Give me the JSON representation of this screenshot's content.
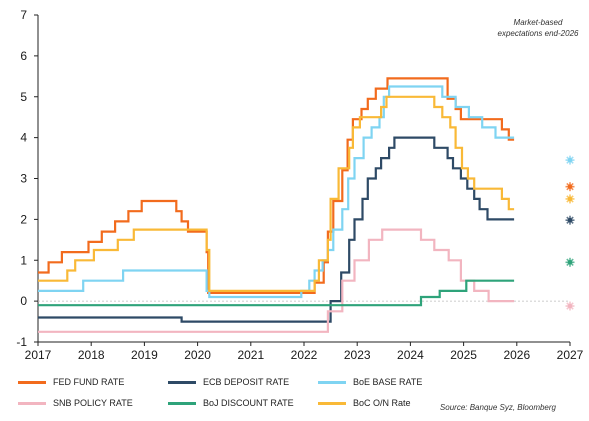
{
  "chart_data": {
    "type": "line",
    "title": "",
    "xlabel": "",
    "ylabel": "",
    "xlim": [
      2017,
      2027
    ],
    "ylim": [
      -1,
      7
    ],
    "x_ticks": [
      "2017",
      "2018",
      "2019",
      "2020",
      "2021",
      "2022",
      "2023",
      "2024",
      "2025",
      "2026",
      "2027"
    ],
    "y_ticks": [
      "-1",
      "0",
      "1",
      "2",
      "3",
      "4",
      "5",
      "6",
      "7"
    ],
    "grid": false,
    "annotation": "Market-based expectations end-2026",
    "source": "Source: Banque Syz, Bloomberg",
    "legend_position": "bottom",
    "series": [
      {
        "name": "FED FUND RATE",
        "color": "#f26b1d",
        "end_expectation": 2.8,
        "points": [
          [
            2017.0,
            0.7
          ],
          [
            2017.2,
            0.95
          ],
          [
            2017.45,
            1.2
          ],
          [
            2017.95,
            1.45
          ],
          [
            2018.2,
            1.7
          ],
          [
            2018.45,
            1.95
          ],
          [
            2018.7,
            2.2
          ],
          [
            2018.95,
            2.45
          ],
          [
            2019.6,
            2.2
          ],
          [
            2019.7,
            1.95
          ],
          [
            2019.82,
            1.7
          ],
          [
            2020.17,
            1.2
          ],
          [
            2020.2,
            0.2
          ],
          [
            2022.2,
            0.45
          ],
          [
            2022.37,
            0.95
          ],
          [
            2022.45,
            1.7
          ],
          [
            2022.55,
            2.45
          ],
          [
            2022.72,
            3.2
          ],
          [
            2022.82,
            3.95
          ],
          [
            2022.92,
            4.45
          ],
          [
            2023.08,
            4.7
          ],
          [
            2023.2,
            4.95
          ],
          [
            2023.35,
            5.2
          ],
          [
            2023.57,
            5.45
          ],
          [
            2024.7,
            4.95
          ],
          [
            2024.85,
            4.7
          ],
          [
            2024.95,
            4.45
          ],
          [
            2025.05,
            4.45
          ],
          [
            2025.72,
            4.2
          ],
          [
            2025.85,
            3.95
          ],
          [
            2025.95,
            3.95
          ]
        ]
      },
      {
        "name": "ECB DEPOSIT RATE",
        "color": "#2e4a66",
        "end_expectation": 1.98,
        "points": [
          [
            2017.0,
            -0.4
          ],
          [
            2019.7,
            -0.5
          ],
          [
            2022.5,
            0.0
          ],
          [
            2022.7,
            0.7
          ],
          [
            2022.85,
            1.5
          ],
          [
            2022.95,
            2.0
          ],
          [
            2023.1,
            2.5
          ],
          [
            2023.2,
            3.0
          ],
          [
            2023.35,
            3.25
          ],
          [
            2023.45,
            3.5
          ],
          [
            2023.6,
            3.75
          ],
          [
            2023.7,
            4.0
          ],
          [
            2024.45,
            3.75
          ],
          [
            2024.7,
            3.5
          ],
          [
            2024.8,
            3.25
          ],
          [
            2024.95,
            3.0
          ],
          [
            2025.07,
            2.75
          ],
          [
            2025.2,
            2.5
          ],
          [
            2025.3,
            2.25
          ],
          [
            2025.45,
            2.0
          ],
          [
            2025.95,
            2.0
          ]
        ]
      },
      {
        "name": "BoE BASE RATE",
        "color": "#7fd4f2",
        "end_expectation": 3.45,
        "points": [
          [
            2017.0,
            0.25
          ],
          [
            2017.85,
            0.5
          ],
          [
            2018.6,
            0.75
          ],
          [
            2020.17,
            0.25
          ],
          [
            2020.22,
            0.1
          ],
          [
            2021.95,
            0.25
          ],
          [
            2022.1,
            0.5
          ],
          [
            2022.2,
            0.75
          ],
          [
            2022.35,
            1.0
          ],
          [
            2022.45,
            1.25
          ],
          [
            2022.55,
            1.75
          ],
          [
            2022.72,
            2.25
          ],
          [
            2022.83,
            3.0
          ],
          [
            2022.95,
            3.5
          ],
          [
            2023.12,
            4.0
          ],
          [
            2023.27,
            4.25
          ],
          [
            2023.42,
            4.5
          ],
          [
            2023.5,
            5.0
          ],
          [
            2023.6,
            5.25
          ],
          [
            2024.6,
            5.0
          ],
          [
            2024.85,
            4.75
          ],
          [
            2025.1,
            4.5
          ],
          [
            2025.35,
            4.25
          ],
          [
            2025.6,
            4.0
          ],
          [
            2025.95,
            4.0
          ]
        ]
      },
      {
        "name": "SNB POLICY RATE",
        "color": "#f2b5c0",
        "end_expectation": -0.12,
        "points": [
          [
            2017.0,
            -0.75
          ],
          [
            2022.45,
            -0.25
          ],
          [
            2022.72,
            0.5
          ],
          [
            2022.95,
            1.0
          ],
          [
            2023.22,
            1.5
          ],
          [
            2023.47,
            1.75
          ],
          [
            2024.2,
            1.5
          ],
          [
            2024.45,
            1.25
          ],
          [
            2024.72,
            1.0
          ],
          [
            2024.95,
            0.5
          ],
          [
            2025.2,
            0.25
          ],
          [
            2025.47,
            0.0
          ],
          [
            2025.95,
            0.0
          ]
        ]
      },
      {
        "name": "BoJ DISCOUNT RATE",
        "color": "#2ea37a",
        "end_expectation": 0.95,
        "points": [
          [
            2017.0,
            -0.1
          ],
          [
            2024.2,
            0.1
          ],
          [
            2024.55,
            0.25
          ],
          [
            2025.05,
            0.5
          ],
          [
            2025.95,
            0.5
          ]
        ]
      },
      {
        "name": "BoC O/N Rate",
        "color": "#f9b937",
        "end_expectation": 2.5,
        "points": [
          [
            2017.0,
            0.5
          ],
          [
            2017.55,
            0.75
          ],
          [
            2017.7,
            1.0
          ],
          [
            2018.05,
            1.25
          ],
          [
            2018.5,
            1.5
          ],
          [
            2018.8,
            1.75
          ],
          [
            2020.17,
            1.25
          ],
          [
            2020.22,
            0.25
          ],
          [
            2022.2,
            0.5
          ],
          [
            2022.28,
            1.0
          ],
          [
            2022.45,
            1.5
          ],
          [
            2022.5,
            2.5
          ],
          [
            2022.65,
            3.25
          ],
          [
            2022.85,
            3.75
          ],
          [
            2022.92,
            4.25
          ],
          [
            2023.05,
            4.5
          ],
          [
            2023.45,
            4.75
          ],
          [
            2023.55,
            5.0
          ],
          [
            2024.45,
            4.75
          ],
          [
            2024.6,
            4.5
          ],
          [
            2024.75,
            4.25
          ],
          [
            2024.85,
            3.75
          ],
          [
            2024.97,
            3.25
          ],
          [
            2025.08,
            3.0
          ],
          [
            2025.2,
            2.75
          ],
          [
            2025.72,
            2.5
          ],
          [
            2025.85,
            2.25
          ],
          [
            2025.95,
            2.25
          ]
        ]
      }
    ]
  }
}
